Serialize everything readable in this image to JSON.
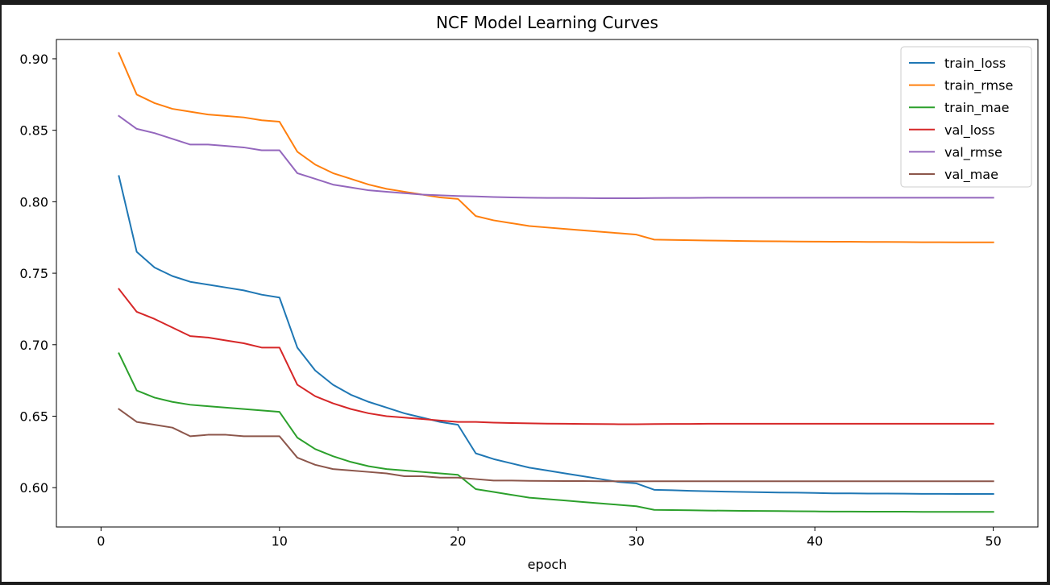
{
  "chart_data": {
    "type": "line",
    "title": "NCF Model Learning Curves",
    "xlabel": "epoch",
    "ylabel": "",
    "xlim": [
      -2.5,
      52.5
    ],
    "ylim": [
      0.5725,
      0.9135
    ],
    "xticks": [
      0,
      10,
      20,
      30,
      40,
      50
    ],
    "yticks": [
      0.6,
      0.65,
      0.7,
      0.75,
      0.8,
      0.85,
      0.9
    ],
    "ytick_labels": [
      "0.60",
      "0.65",
      "0.70",
      "0.75",
      "0.80",
      "0.85",
      "0.90"
    ],
    "grid": false,
    "legend_loc": "top-right",
    "x": [
      1,
      2,
      3,
      4,
      5,
      6,
      7,
      8,
      9,
      10,
      11,
      12,
      13,
      14,
      15,
      16,
      17,
      18,
      19,
      20,
      21,
      22,
      23,
      24,
      25,
      26,
      27,
      28,
      29,
      30,
      31,
      32,
      33,
      34,
      35,
      36,
      37,
      38,
      39,
      40,
      41,
      42,
      43,
      44,
      45,
      46,
      47,
      48,
      49,
      50
    ],
    "series": [
      {
        "name": "train_loss",
        "color": "#1f77b4",
        "values": [
          0.818,
          0.765,
          0.754,
          0.748,
          0.744,
          0.742,
          0.74,
          0.738,
          0.735,
          0.733,
          0.698,
          0.682,
          0.672,
          0.665,
          0.66,
          0.656,
          0.652,
          0.649,
          0.646,
          0.644,
          0.624,
          0.62,
          0.617,
          0.614,
          0.612,
          0.61,
          0.608,
          0.606,
          0.604,
          0.603,
          0.5985,
          0.5982,
          0.5978,
          0.5975,
          0.5972,
          0.597,
          0.5968,
          0.5966,
          0.5965,
          0.5963,
          0.596,
          0.596,
          0.5959,
          0.5959,
          0.5958,
          0.5957,
          0.5957,
          0.5956,
          0.5956,
          0.5956
        ]
      },
      {
        "name": "train_rmse",
        "color": "#ff7f0e",
        "values": [
          0.904,
          0.875,
          0.869,
          0.865,
          0.863,
          0.861,
          0.86,
          0.859,
          0.857,
          0.856,
          0.835,
          0.826,
          0.82,
          0.816,
          0.812,
          0.809,
          0.807,
          0.805,
          0.803,
          0.802,
          0.79,
          0.787,
          0.785,
          0.783,
          0.782,
          0.781,
          0.78,
          0.779,
          0.778,
          0.777,
          0.7735,
          0.7733,
          0.7731,
          0.7729,
          0.7727,
          0.7725,
          0.7724,
          0.7723,
          0.7722,
          0.7721,
          0.772,
          0.772,
          0.7719,
          0.7719,
          0.7718,
          0.7717,
          0.7717,
          0.7716,
          0.7716,
          0.7716
        ]
      },
      {
        "name": "train_mae",
        "color": "#2ca02c",
        "values": [
          0.694,
          0.668,
          0.663,
          0.66,
          0.658,
          0.657,
          0.656,
          0.655,
          0.654,
          0.653,
          0.635,
          0.627,
          0.622,
          0.618,
          0.615,
          0.613,
          0.612,
          0.611,
          0.61,
          0.609,
          0.599,
          0.597,
          0.595,
          0.593,
          0.592,
          0.591,
          0.59,
          0.589,
          0.588,
          0.587,
          0.5845,
          0.5843,
          0.5842,
          0.584,
          0.5839,
          0.5838,
          0.5837,
          0.5836,
          0.5835,
          0.5834,
          0.5833,
          0.5833,
          0.5832,
          0.5832,
          0.5832,
          0.5831,
          0.5831,
          0.5831,
          0.5831,
          0.5831
        ]
      },
      {
        "name": "val_loss",
        "color": "#d62728",
        "values": [
          0.739,
          0.723,
          0.718,
          0.712,
          0.706,
          0.705,
          0.703,
          0.701,
          0.698,
          0.698,
          0.672,
          0.664,
          0.659,
          0.655,
          0.652,
          0.65,
          0.649,
          0.648,
          0.647,
          0.646,
          0.646,
          0.6455,
          0.6452,
          0.645,
          0.6448,
          0.6447,
          0.6446,
          0.6445,
          0.6444,
          0.6444,
          0.6445,
          0.6446,
          0.6446,
          0.6447,
          0.6447,
          0.6447,
          0.6447,
          0.6447,
          0.6447,
          0.6447,
          0.6447,
          0.6447,
          0.6447,
          0.6447,
          0.6447,
          0.6447,
          0.6447,
          0.6447,
          0.6447,
          0.6447
        ]
      },
      {
        "name": "val_rmse",
        "color": "#9467bd",
        "values": [
          0.86,
          0.851,
          0.848,
          0.844,
          0.84,
          0.84,
          0.839,
          0.838,
          0.836,
          0.836,
          0.82,
          0.816,
          0.812,
          0.81,
          0.808,
          0.807,
          0.806,
          0.805,
          0.8045,
          0.804,
          0.8037,
          0.8033,
          0.803,
          0.8028,
          0.8027,
          0.8027,
          0.8026,
          0.8025,
          0.8025,
          0.8025,
          0.8026,
          0.8027,
          0.8027,
          0.8028,
          0.8028,
          0.8028,
          0.8028,
          0.8028,
          0.8028,
          0.8028,
          0.8028,
          0.8028,
          0.8028,
          0.8028,
          0.8028,
          0.8028,
          0.8028,
          0.8028,
          0.8028,
          0.8028
        ]
      },
      {
        "name": "val_mae",
        "color": "#8c564b",
        "values": [
          0.655,
          0.646,
          0.644,
          0.642,
          0.636,
          0.637,
          0.637,
          0.636,
          0.636,
          0.636,
          0.621,
          0.616,
          0.613,
          0.612,
          0.611,
          0.61,
          0.608,
          0.608,
          0.607,
          0.607,
          0.606,
          0.605,
          0.605,
          0.6048,
          0.6047,
          0.6046,
          0.6046,
          0.6045,
          0.6045,
          0.6044,
          0.6045,
          0.6045,
          0.6045,
          0.6045,
          0.6045,
          0.6045,
          0.6045,
          0.6045,
          0.6045,
          0.6045,
          0.6045,
          0.6045,
          0.6045,
          0.6045,
          0.6045,
          0.6045,
          0.6045,
          0.6045,
          0.6045,
          0.6045
        ]
      }
    ]
  }
}
